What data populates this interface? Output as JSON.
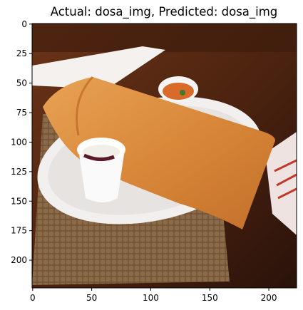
{
  "figure": {
    "title": "Actual: dosa_img, Predicted: dosa_img"
  },
  "chart_data": {
    "type": "image",
    "title": "Actual: dosa_img, Predicted: dosa_img",
    "xlabel": "",
    "ylabel": "",
    "x_ticks": [
      0,
      50,
      100,
      150,
      200
    ],
    "y_ticks": [
      0,
      25,
      50,
      75,
      100,
      125,
      150,
      175,
      200
    ],
    "xlim": [
      0,
      224
    ],
    "ylim": [
      224,
      0
    ],
    "grid": false,
    "image_subject": "dosa with chutney cups on a white plate over a woven mat",
    "colors": {
      "table": "#5a2a12",
      "dosa": "#d9883a",
      "plate": "#f2f0ee",
      "mat": "#8c6a48",
      "chutney_orange": "#d96a2a"
    }
  }
}
